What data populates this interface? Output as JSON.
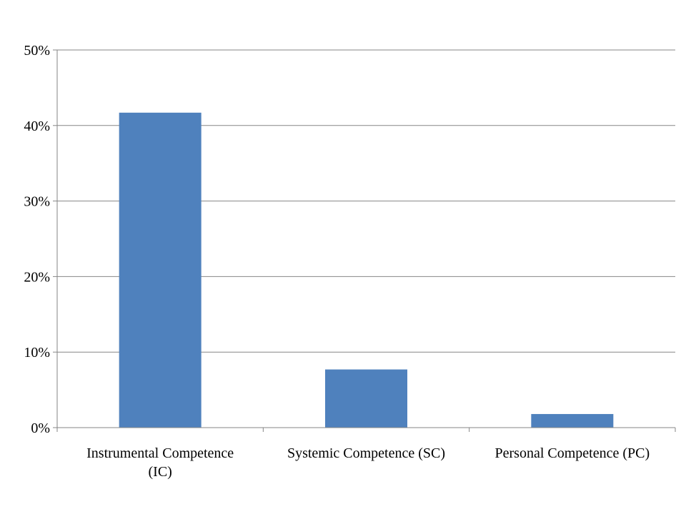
{
  "chart_data": {
    "type": "bar",
    "categories": [
      [
        "Instrumental Competence",
        "(IC)"
      ],
      [
        "Systemic Competence (SC)"
      ],
      [
        "Personal Competence (PC)"
      ]
    ],
    "values": [
      41.7,
      7.7,
      1.8
    ],
    "ylim": [
      0,
      50
    ],
    "yticks": [
      0,
      10,
      20,
      30,
      40,
      50
    ],
    "ytick_labels": [
      "0%",
      "10%",
      "20%",
      "30%",
      "40%",
      "50%"
    ],
    "grid": true,
    "legend": "none",
    "bar_color": "#4F81BD",
    "grid_color": "#868686",
    "axis_color": "#868686"
  }
}
